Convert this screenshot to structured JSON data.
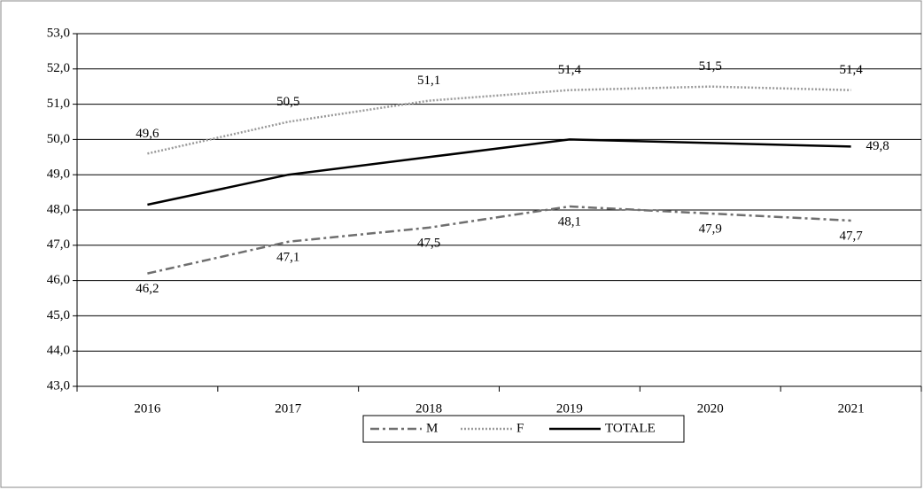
{
  "chart_data": {
    "type": "line",
    "categories": [
      "2016",
      "2017",
      "2018",
      "2019",
      "2020",
      "2021"
    ],
    "series": [
      {
        "name": "M",
        "color": "#6f6f6f",
        "dash": "dashdot",
        "values": [
          46.2,
          47.1,
          47.5,
          48.1,
          47.9,
          47.7
        ],
        "value_labels": [
          "46,2",
          "47,1",
          "47,5",
          "48,1",
          "47,9",
          "47,7"
        ]
      },
      {
        "name": "F",
        "color": "#9a9a9a",
        "dash": "dotted",
        "values": [
          49.6,
          50.5,
          51.1,
          51.4,
          51.5,
          51.4
        ],
        "value_labels": [
          "49,6",
          "50,5",
          "51,1",
          "51,4",
          "51,5",
          "51,4"
        ]
      },
      {
        "name": "TOTALE",
        "color": "#000000",
        "dash": "solid",
        "values": [
          48.15,
          49.0,
          49.5,
          50.0,
          49.9,
          49.8
        ],
        "value_labels": [
          null,
          null,
          null,
          null,
          null,
          "49,8"
        ]
      }
    ],
    "ylim": [
      43,
      53
    ],
    "yticks": [
      {
        "value": 43,
        "label": "43,0"
      },
      {
        "value": 44,
        "label": "44,0"
      },
      {
        "value": 45,
        "label": "45,0"
      },
      {
        "value": 46,
        "label": "46,0"
      },
      {
        "value": 47,
        "label": "47,0"
      },
      {
        "value": 48,
        "label": "48,0"
      },
      {
        "value": 49,
        "label": "49,0"
      },
      {
        "value": 50,
        "label": "50,0"
      },
      {
        "value": 51,
        "label": "51,0"
      },
      {
        "value": 52,
        "label": "52,0"
      },
      {
        "value": 53,
        "label": "53,0"
      }
    ],
    "grid": true,
    "legend": "bottom"
  }
}
